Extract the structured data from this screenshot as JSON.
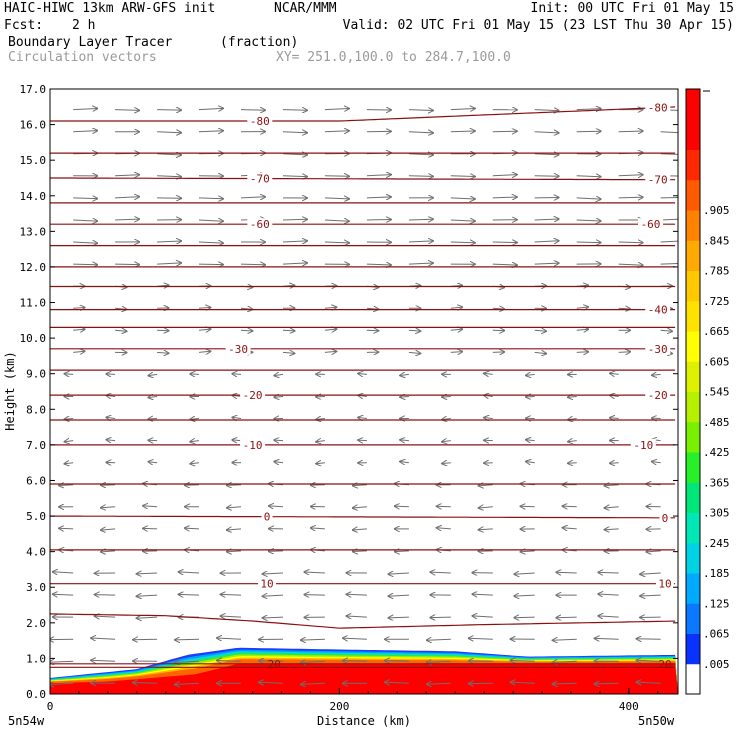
{
  "header": {
    "model_title": "HAIC-HIWC 13km ARW-GFS init",
    "center": "NCAR/MMM",
    "init_time": "Init: 00 UTC Fri 01 May 15",
    "fcst_label": "Fcst:",
    "fcst_value": "2 h",
    "valid_time": "Valid: 02 UTC Fri 01 May 15 (23 LST Thu 30 Apr 15)",
    "field_name": "Boundary Layer Tracer",
    "field_units": "(fraction)",
    "overlay_name": "Circulation vectors",
    "cross_section": "XY= 251.0,100.0 to 284.7,100.0"
  },
  "colors": {
    "contour": "#8b1010",
    "vector": "#6e6e6e",
    "field_high": "#ff0000"
  },
  "chart_data": {
    "type": "heatmap",
    "title": "Boundary Layer Tracer",
    "xlabel": "Distance (km)",
    "ylabel": "Height (km)",
    "xlim": [
      0,
      434
    ],
    "ylim": [
      0,
      17
    ],
    "x_ticks": [
      0,
      200,
      400
    ],
    "x_tick_labels": [
      "0",
      "200",
      "400"
    ],
    "x_end_labels": [
      "5n54w",
      "5n50w"
    ],
    "y_ticks": [
      0,
      1,
      2,
      3,
      4,
      5,
      6,
      7,
      8,
      9,
      10,
      11,
      12,
      13,
      14,
      15,
      16,
      17
    ],
    "y_tick_labels": [
      "0.0",
      "1.0",
      "2.0",
      "3.0",
      "4.0",
      "5.0",
      "6.0",
      "7.0",
      "8.0",
      "9.0",
      "10.0",
      "11.0",
      "12.0",
      "13.0",
      "14.0",
      "15.0",
      "16.0",
      "17.0"
    ],
    "colorbar": {
      "labels": [
        ".005",
        ".065",
        ".125",
        ".185",
        ".245",
        ".305",
        ".365",
        ".425",
        ".485",
        ".545",
        ".605",
        ".665",
        ".725",
        ".785",
        ".845",
        ".905"
      ],
      "colors": [
        "#ffffff",
        "#0a32ff",
        "#0a78ff",
        "#00aaff",
        "#00d2e6",
        "#00e6b4",
        "#00e678",
        "#28f028",
        "#78f000",
        "#b4f000",
        "#dcf000",
        "#ffff00",
        "#ffe100",
        "#ffc800",
        "#ffaa00",
        "#ff8200",
        "#ff5a00",
        "#ff2800",
        "#ff0000",
        "#ff0000"
      ]
    },
    "temperature_contours": [
      {
        "level": -80,
        "x": [
          0,
          200,
          434
        ],
        "y": [
          16.1,
          16.1,
          16.5
        ],
        "labels_at": [
          145,
          420
        ]
      },
      {
        "level": -70,
        "x": [
          0,
          434
        ],
        "y": [
          14.5,
          14.45
        ],
        "labels_at": [
          145,
          420
        ]
      },
      {
        "level": -60,
        "x": [
          0,
          434
        ],
        "y": [
          13.2,
          13.2
        ],
        "labels_at": [
          145,
          415
        ]
      },
      {
        "level": -40,
        "x": [
          0,
          434
        ],
        "y": [
          10.8,
          10.8
        ],
        "labels_at": [
          420
        ]
      },
      {
        "level": -30,
        "x": [
          0,
          434
        ],
        "y": [
          9.7,
          9.7
        ],
        "labels_at": [
          130,
          420
        ]
      },
      {
        "level": -20,
        "x": [
          0,
          434
        ],
        "y": [
          8.4,
          8.4
        ],
        "labels_at": [
          140,
          420
        ]
      },
      {
        "level": -10,
        "x": [
          0,
          434
        ],
        "y": [
          7.0,
          7.0
        ],
        "labels_at": [
          140,
          410
        ]
      },
      {
        "level": 0,
        "x": [
          0,
          434
        ],
        "y": [
          5.0,
          4.95
        ],
        "labels_at": [
          150,
          425
        ]
      },
      {
        "level": 10,
        "x": [
          0,
          434
        ],
        "y": [
          3.1,
          3.1
        ],
        "labels_at": [
          150,
          425
        ]
      },
      {
        "level": 20,
        "x": [
          0,
          434
        ],
        "y": [
          0.85,
          0.85
        ],
        "labels_at": [
          155,
          425
        ]
      }
    ],
    "other_contours_y": [
      15.2,
      13.8,
      12.6,
      12.0,
      11.45,
      10.3,
      9.1,
      7.7,
      5.9,
      4.05,
      0.75
    ],
    "inversion_contour": {
      "x": [
        0,
        80,
        140,
        200,
        300,
        434
      ],
      "y": [
        2.25,
        2.2,
        2.05,
        1.85,
        1.95,
        2.05
      ]
    },
    "tracer_top_km": {
      "x": [
        0,
        60,
        95,
        130,
        200,
        280,
        330,
        434
      ],
      "y": [
        0.45,
        0.7,
        1.1,
        1.3,
        1.25,
        1.2,
        1.05,
        1.1
      ]
    },
    "tracer_core_top_km": {
      "x": [
        0,
        40,
        100,
        130,
        434
      ],
      "y": [
        0.3,
        0.35,
        0.55,
        0.85,
        0.85
      ]
    }
  }
}
